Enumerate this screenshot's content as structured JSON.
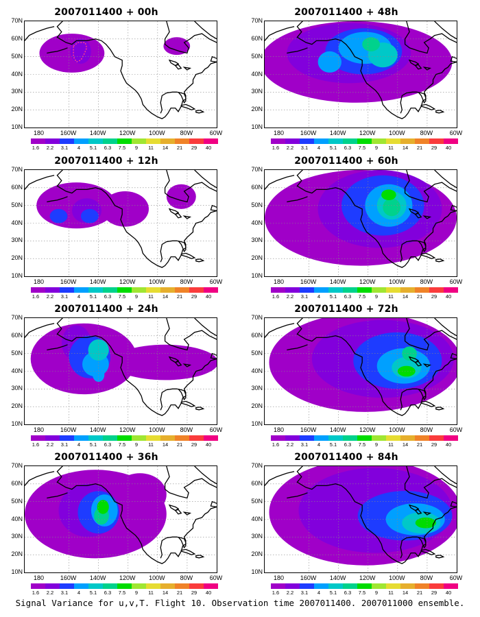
{
  "figure": {
    "caption": "Signal Variance for u,v,T. Flight 10. Observation time 2007011400. 2007011000 ensemble.",
    "lat_labels": [
      "70N",
      "60N",
      "50N",
      "40N",
      "30N",
      "20N",
      "10N"
    ],
    "lon_labels": [
      "180",
      "160W",
      "140W",
      "120W",
      "100W",
      "80W",
      "60W"
    ],
    "colorbar": {
      "labels": [
        "1.6",
        "2.2",
        "3.1",
        "4",
        "5.1",
        "6.3",
        "7.5",
        "9",
        "11",
        "14",
        "21",
        "29",
        "40"
      ],
      "colors": [
        "#a000c8",
        "#8200dc",
        "#1e3cff",
        "#00a0ff",
        "#00c8c8",
        "#00d28c",
        "#00dc00",
        "#a0e632",
        "#e6dc32",
        "#e6af2d",
        "#f08228",
        "#fa3c3c",
        "#f00082"
      ]
    },
    "panels": [
      {
        "title": "2007011400 + 00h"
      },
      {
        "title": "2007011400 + 12h"
      },
      {
        "title": "2007011400 + 24h"
      },
      {
        "title": "2007011400 + 36h"
      },
      {
        "title": "2007011400 + 48h"
      },
      {
        "title": "2007011400 + 60h"
      },
      {
        "title": "2007011400 + 72h"
      },
      {
        "title": "2007011400 + 84h"
      }
    ]
  }
}
